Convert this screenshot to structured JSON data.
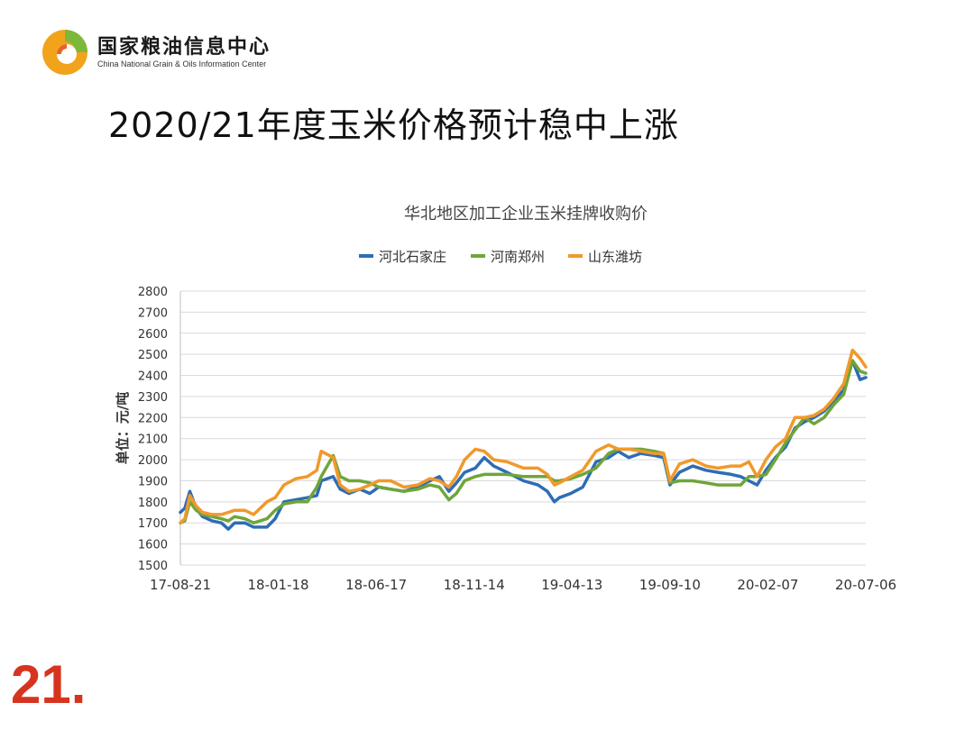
{
  "logo": {
    "cn": "国家粮油信息中心",
    "en": "China National Grain & Oils Information Center"
  },
  "slide": {
    "title": "2020/21年度玉米价格预计稳中上涨",
    "page_number": "21."
  },
  "colors": {
    "hebei": "#2e6db5",
    "henan": "#6fa53a",
    "shandong": "#f0992b",
    "grid": "#d9d9d9",
    "page_number": "#d7341f"
  },
  "chart_data": {
    "type": "line",
    "title": "华北地区加工企业玉米挂牌收购价",
    "ylabel": "单位：元/吨",
    "xlabel": "",
    "ylim": [
      1500,
      2800
    ],
    "yticks": [
      1500,
      1600,
      1700,
      1800,
      1900,
      2000,
      2100,
      2200,
      2300,
      2400,
      2500,
      2600,
      2700,
      2800
    ],
    "xticks": [
      "17-08-21",
      "18-01-18",
      "18-06-17",
      "18-11-14",
      "19-04-13",
      "19-09-10",
      "20-02-07",
      "20-07-06"
    ],
    "x_range": [
      "2017-08-21",
      "2020-08-10"
    ],
    "grid": true,
    "legend_position": "top",
    "series": [
      {
        "name": "河北石家庄",
        "color": "#2e6db5",
        "points": [
          [
            "2017-08-21",
            1750
          ],
          [
            "2017-08-28",
            1770
          ],
          [
            "2017-09-05",
            1850
          ],
          [
            "2017-09-15",
            1770
          ],
          [
            "2017-09-25",
            1730
          ],
          [
            "2017-10-10",
            1710
          ],
          [
            "2017-10-25",
            1700
          ],
          [
            "2017-11-05",
            1670
          ],
          [
            "2017-11-15",
            1700
          ],
          [
            "2017-12-01",
            1700
          ],
          [
            "2017-12-15",
            1680
          ],
          [
            "2018-01-05",
            1680
          ],
          [
            "2018-01-18",
            1720
          ],
          [
            "2018-02-01",
            1800
          ],
          [
            "2018-02-20",
            1810
          ],
          [
            "2018-03-10",
            1820
          ],
          [
            "2018-03-25",
            1830
          ],
          [
            "2018-04-01",
            1900
          ],
          [
            "2018-04-20",
            1920
          ],
          [
            "2018-05-01",
            1860
          ],
          [
            "2018-05-15",
            1840
          ],
          [
            "2018-06-01",
            1860
          ],
          [
            "2018-06-17",
            1840
          ],
          [
            "2018-07-01",
            1870
          ],
          [
            "2018-07-20",
            1860
          ],
          [
            "2018-08-10",
            1850
          ],
          [
            "2018-09-01",
            1870
          ],
          [
            "2018-09-20",
            1900
          ],
          [
            "2018-10-05",
            1920
          ],
          [
            "2018-10-20",
            1850
          ],
          [
            "2018-11-01",
            1890
          ],
          [
            "2018-11-14",
            1940
          ],
          [
            "2018-12-01",
            1960
          ],
          [
            "2018-12-15",
            2010
          ],
          [
            "2018-12-30",
            1970
          ],
          [
            "2019-01-20",
            1940
          ],
          [
            "2019-02-15",
            1900
          ],
          [
            "2019-03-10",
            1880
          ],
          [
            "2019-03-25",
            1850
          ],
          [
            "2019-04-05",
            1800
          ],
          [
            "2019-04-13",
            1820
          ],
          [
            "2019-05-01",
            1840
          ],
          [
            "2019-05-20",
            1870
          ],
          [
            "2019-06-10",
            1990
          ],
          [
            "2019-06-30",
            2010
          ],
          [
            "2019-07-15",
            2040
          ],
          [
            "2019-08-01",
            2010
          ],
          [
            "2019-08-20",
            2030
          ],
          [
            "2019-09-10",
            2020
          ],
          [
            "2019-09-25",
            2010
          ],
          [
            "2019-10-05",
            1880
          ],
          [
            "2019-10-20",
            1940
          ],
          [
            "2019-11-10",
            1970
          ],
          [
            "2019-12-01",
            1950
          ],
          [
            "2019-12-20",
            1940
          ],
          [
            "2020-01-10",
            1930
          ],
          [
            "2020-01-25",
            1920
          ],
          [
            "2020-02-07",
            1900
          ],
          [
            "2020-02-20",
            1880
          ],
          [
            "2020-03-05",
            1950
          ],
          [
            "2020-03-20",
            2010
          ],
          [
            "2020-04-05",
            2060
          ],
          [
            "2020-04-20",
            2150
          ],
          [
            "2020-05-05",
            2180
          ],
          [
            "2020-05-20",
            2200
          ],
          [
            "2020-06-05",
            2230
          ],
          [
            "2020-06-20",
            2280
          ],
          [
            "2020-07-06",
            2330
          ],
          [
            "2020-07-20",
            2470
          ],
          [
            "2020-08-01",
            2380
          ],
          [
            "2020-08-10",
            2390
          ]
        ]
      },
      {
        "name": "河南郑州",
        "color": "#6fa53a",
        "points": [
          [
            "2017-08-21",
            1700
          ],
          [
            "2017-08-28",
            1710
          ],
          [
            "2017-09-05",
            1800
          ],
          [
            "2017-09-15",
            1760
          ],
          [
            "2017-09-25",
            1740
          ],
          [
            "2017-10-10",
            1730
          ],
          [
            "2017-10-25",
            1720
          ],
          [
            "2017-11-05",
            1710
          ],
          [
            "2017-11-15",
            1730
          ],
          [
            "2017-12-01",
            1720
          ],
          [
            "2017-12-15",
            1700
          ],
          [
            "2018-01-05",
            1720
          ],
          [
            "2018-01-18",
            1760
          ],
          [
            "2018-02-01",
            1790
          ],
          [
            "2018-02-20",
            1800
          ],
          [
            "2018-03-10",
            1800
          ],
          [
            "2018-03-25",
            1870
          ],
          [
            "2018-04-01",
            1920
          ],
          [
            "2018-04-20",
            2020
          ],
          [
            "2018-05-01",
            1920
          ],
          [
            "2018-05-15",
            1900
          ],
          [
            "2018-06-01",
            1900
          ],
          [
            "2018-06-17",
            1890
          ],
          [
            "2018-07-01",
            1870
          ],
          [
            "2018-07-20",
            1860
          ],
          [
            "2018-08-10",
            1850
          ],
          [
            "2018-09-01",
            1860
          ],
          [
            "2018-09-20",
            1880
          ],
          [
            "2018-10-05",
            1870
          ],
          [
            "2018-10-20",
            1810
          ],
          [
            "2018-11-01",
            1840
          ],
          [
            "2018-11-14",
            1900
          ],
          [
            "2018-12-01",
            1920
          ],
          [
            "2018-12-15",
            1930
          ],
          [
            "2018-12-30",
            1930
          ],
          [
            "2019-01-20",
            1930
          ],
          [
            "2019-02-15",
            1920
          ],
          [
            "2019-03-10",
            1920
          ],
          [
            "2019-03-25",
            1920
          ],
          [
            "2019-04-05",
            1900
          ],
          [
            "2019-04-13",
            1900
          ],
          [
            "2019-05-01",
            1910
          ],
          [
            "2019-05-20",
            1930
          ],
          [
            "2019-06-10",
            1960
          ],
          [
            "2019-06-30",
            2030
          ],
          [
            "2019-07-15",
            2050
          ],
          [
            "2019-08-01",
            2050
          ],
          [
            "2019-08-20",
            2050
          ],
          [
            "2019-09-10",
            2040
          ],
          [
            "2019-09-25",
            2030
          ],
          [
            "2019-10-05",
            1890
          ],
          [
            "2019-10-20",
            1900
          ],
          [
            "2019-11-10",
            1900
          ],
          [
            "2019-12-01",
            1890
          ],
          [
            "2019-12-20",
            1880
          ],
          [
            "2020-01-10",
            1880
          ],
          [
            "2020-01-25",
            1880
          ],
          [
            "2020-02-07",
            1920
          ],
          [
            "2020-02-20",
            1920
          ],
          [
            "2020-03-05",
            1930
          ],
          [
            "2020-03-20",
            2000
          ],
          [
            "2020-04-05",
            2080
          ],
          [
            "2020-04-20",
            2140
          ],
          [
            "2020-05-05",
            2200
          ],
          [
            "2020-05-20",
            2170
          ],
          [
            "2020-06-05",
            2200
          ],
          [
            "2020-06-20",
            2260
          ],
          [
            "2020-07-06",
            2310
          ],
          [
            "2020-07-20",
            2470
          ],
          [
            "2020-08-01",
            2420
          ],
          [
            "2020-08-10",
            2410
          ]
        ]
      },
      {
        "name": "山东潍坊",
        "color": "#f0992b",
        "points": [
          [
            "2017-08-21",
            1700
          ],
          [
            "2017-08-28",
            1720
          ],
          [
            "2017-09-05",
            1830
          ],
          [
            "2017-09-15",
            1780
          ],
          [
            "2017-09-25",
            1750
          ],
          [
            "2017-10-10",
            1740
          ],
          [
            "2017-10-25",
            1740
          ],
          [
            "2017-11-05",
            1750
          ],
          [
            "2017-11-15",
            1760
          ],
          [
            "2017-12-01",
            1760
          ],
          [
            "2017-12-15",
            1740
          ],
          [
            "2018-01-05",
            1800
          ],
          [
            "2018-01-18",
            1820
          ],
          [
            "2018-02-01",
            1880
          ],
          [
            "2018-02-20",
            1910
          ],
          [
            "2018-03-10",
            1920
          ],
          [
            "2018-03-25",
            1950
          ],
          [
            "2018-04-01",
            2040
          ],
          [
            "2018-04-20",
            2010
          ],
          [
            "2018-05-01",
            1880
          ],
          [
            "2018-05-15",
            1850
          ],
          [
            "2018-06-01",
            1860
          ],
          [
            "2018-06-17",
            1880
          ],
          [
            "2018-07-01",
            1900
          ],
          [
            "2018-07-20",
            1900
          ],
          [
            "2018-08-10",
            1870
          ],
          [
            "2018-09-01",
            1880
          ],
          [
            "2018-09-20",
            1910
          ],
          [
            "2018-10-05",
            1900
          ],
          [
            "2018-10-20",
            1870
          ],
          [
            "2018-11-01",
            1920
          ],
          [
            "2018-11-14",
            2000
          ],
          [
            "2018-12-01",
            2050
          ],
          [
            "2018-12-15",
            2040
          ],
          [
            "2018-12-30",
            2000
          ],
          [
            "2019-01-20",
            1990
          ],
          [
            "2019-02-15",
            1960
          ],
          [
            "2019-03-10",
            1960
          ],
          [
            "2019-03-25",
            1930
          ],
          [
            "2019-04-05",
            1880
          ],
          [
            "2019-04-13",
            1890
          ],
          [
            "2019-05-01",
            1920
          ],
          [
            "2019-05-20",
            1950
          ],
          [
            "2019-06-10",
            2040
          ],
          [
            "2019-06-30",
            2070
          ],
          [
            "2019-07-15",
            2050
          ],
          [
            "2019-08-01",
            2050
          ],
          [
            "2019-08-20",
            2040
          ],
          [
            "2019-09-10",
            2030
          ],
          [
            "2019-09-25",
            2030
          ],
          [
            "2019-10-05",
            1900
          ],
          [
            "2019-10-20",
            1980
          ],
          [
            "2019-11-10",
            2000
          ],
          [
            "2019-12-01",
            1970
          ],
          [
            "2019-12-20",
            1960
          ],
          [
            "2020-01-10",
            1970
          ],
          [
            "2020-01-25",
            1970
          ],
          [
            "2020-02-07",
            1990
          ],
          [
            "2020-02-20",
            1920
          ],
          [
            "2020-03-05",
            2000
          ],
          [
            "2020-03-20",
            2060
          ],
          [
            "2020-04-05",
            2100
          ],
          [
            "2020-04-20",
            2200
          ],
          [
            "2020-05-05",
            2200
          ],
          [
            "2020-05-20",
            2210
          ],
          [
            "2020-06-05",
            2240
          ],
          [
            "2020-06-20",
            2290
          ],
          [
            "2020-07-06",
            2360
          ],
          [
            "2020-07-20",
            2520
          ],
          [
            "2020-08-01",
            2480
          ],
          [
            "2020-08-10",
            2440
          ]
        ]
      }
    ]
  }
}
